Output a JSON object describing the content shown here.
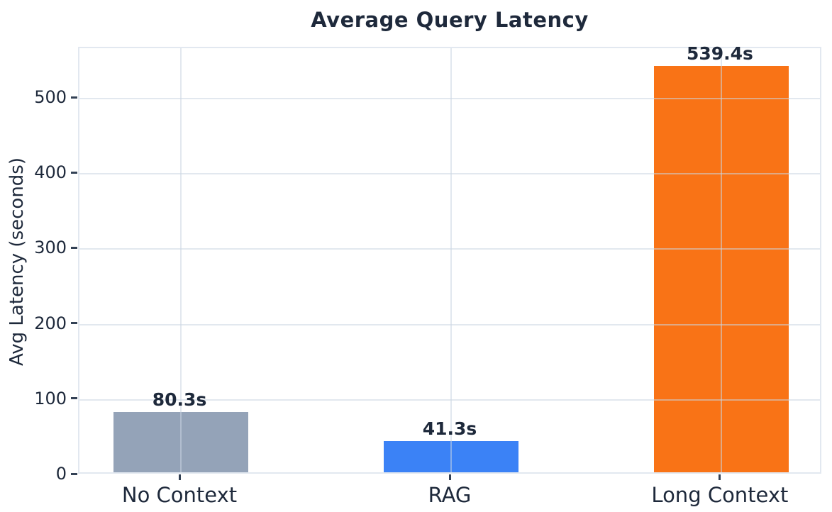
{
  "chart_data": {
    "type": "bar",
    "title": "Average Query Latency",
    "categories": [
      "No Context",
      "RAG",
      "Long Context"
    ],
    "values": [
      80.3,
      41.3,
      539.4
    ],
    "bar_labels": [
      "80.3s",
      "41.3s",
      "539.4s"
    ],
    "bar_colors": [
      "#94a3b8",
      "#3b82f6",
      "#f97316"
    ],
    "xlabel": "",
    "ylabel": "Avg Latency (seconds)",
    "yticks": [
      0,
      100,
      200,
      300,
      400,
      500
    ],
    "ylim": [
      0,
      567
    ],
    "grid": true,
    "grid_axis": "both",
    "legend": null,
    "colors": {
      "text": "#1e293b",
      "grid": "#cbd5e1",
      "plot_border": "#e2e8f0",
      "background": "#ffffff"
    }
  }
}
